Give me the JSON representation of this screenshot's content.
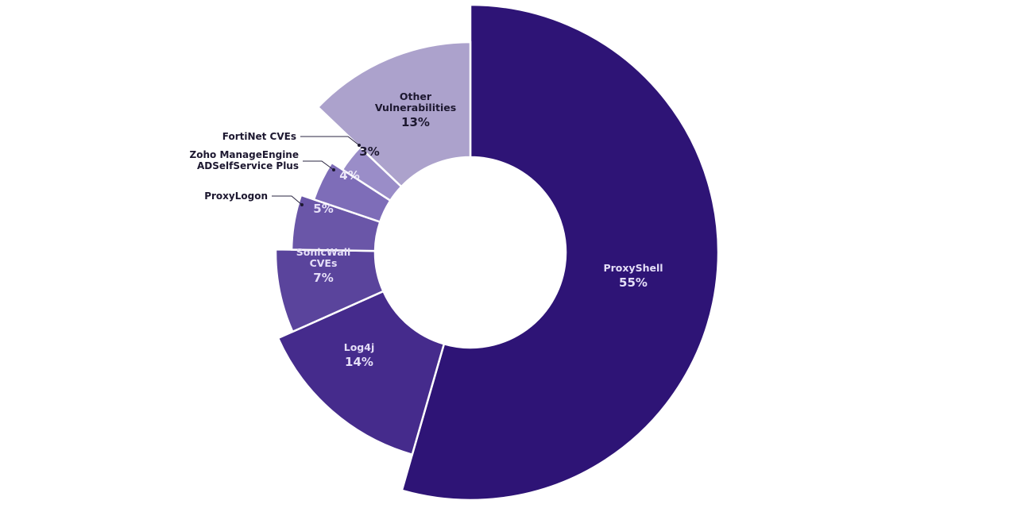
{
  "chart_data": {
    "type": "pie",
    "subtype": "donut-variable-radius",
    "title": "",
    "unit": "%",
    "categories": [
      "ProxyShell",
      "Log4j",
      "SonicWall CVEs",
      "ProxyLogon",
      "Zoho ManageEngine ADSelfService Plus",
      "FortiNet CVEs",
      "Other Vulnerabilities"
    ],
    "values": [
      55,
      14,
      7,
      5,
      4,
      3,
      13
    ],
    "labels": [
      "55%",
      "14%",
      "7%",
      "5%",
      "4%",
      "3%",
      "13%"
    ],
    "colors": [
      "#2e1476",
      "#452b8c",
      "#5a449c",
      "#6a56a8",
      "#7e6db8",
      "#9a8dc8",
      "#aca2cc"
    ],
    "start_angle_deg": 0,
    "direction": "clockwise",
    "legend": "none",
    "label_placement": {
      "ProxyShell": "inside",
      "Log4j": "inside",
      "SonicWall CVEs": "inside",
      "ProxyLogon": "callout",
      "Zoho ManageEngine ADSelfService Plus": "callout",
      "FortiNet CVEs": "callout",
      "Other Vulnerabilities": "inside"
    }
  },
  "segments": [
    {
      "name": "ProxyShell",
      "value": 55,
      "pct": "55%",
      "name_lines": [
        "ProxyShell"
      ]
    },
    {
      "name": "Log4j",
      "value": 14,
      "pct": "14%",
      "name_lines": [
        "Log4j"
      ]
    },
    {
      "name": "SonicWall CVEs",
      "value": 7,
      "pct": "7%",
      "name_lines": [
        "SonicWall",
        "CVEs"
      ]
    },
    {
      "name": "ProxyLogon",
      "value": 5,
      "pct": "5%",
      "name_lines": [
        "ProxyLogon"
      ]
    },
    {
      "name": "Zoho ManageEngine ADSelfService Plus",
      "value": 4,
      "pct": "4%",
      "name_lines": [
        "Zoho ManageEngine",
        "ADSelfService Plus"
      ]
    },
    {
      "name": "FortiNet CVEs",
      "value": 3,
      "pct": "3%",
      "name_lines": [
        "FortiNet CVEs"
      ]
    },
    {
      "name": "Other Vulnerabilities",
      "value": 13,
      "pct": "13%",
      "name_lines": [
        "Other",
        "Vulnerabilities"
      ]
    }
  ]
}
